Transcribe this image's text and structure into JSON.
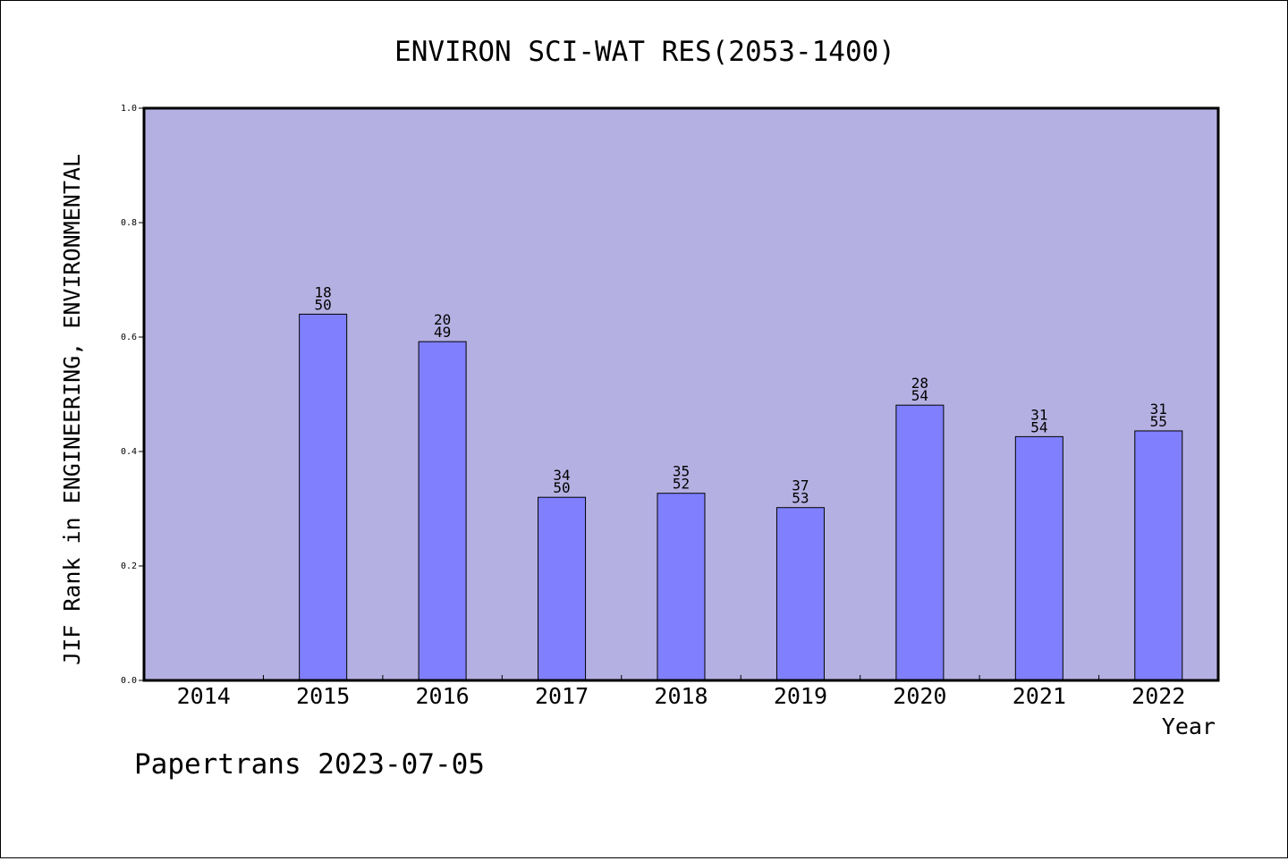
{
  "chart_data": {
    "type": "bar",
    "title": "ENVIRON SCI-WAT RES(2053-1400)",
    "xlabel": "Year",
    "ylabel": "JIF Rank in ENGINEERING, ENVIRONMENTAL",
    "footer": "Papertrans 2023-07-05",
    "ylim": [
      0,
      1.0
    ],
    "yticks": [
      "0.0",
      "0.2",
      "0.4",
      "0.6",
      "0.8",
      "1.0"
    ],
    "grid": false,
    "categories": [
      "2014",
      "2015",
      "2016",
      "2017",
      "2018",
      "2019",
      "2020",
      "2021",
      "2022"
    ],
    "values": [
      null,
      0.64,
      0.592,
      0.32,
      0.327,
      0.302,
      0.481,
      0.426,
      0.436
    ],
    "rank_labels": [
      null,
      {
        "rank": "18",
        "total": "50"
      },
      {
        "rank": "20",
        "total": "49"
      },
      {
        "rank": "34",
        "total": "50"
      },
      {
        "rank": "35",
        "total": "52"
      },
      {
        "rank": "37",
        "total": "53"
      },
      {
        "rank": "28",
        "total": "54"
      },
      {
        "rank": "31",
        "total": "54"
      },
      {
        "rank": "31",
        "total": "55"
      }
    ],
    "colors": {
      "plot_background": "#b5b0e2",
      "bar_fill": "#8080ff",
      "bar_stroke": "#000000"
    }
  }
}
